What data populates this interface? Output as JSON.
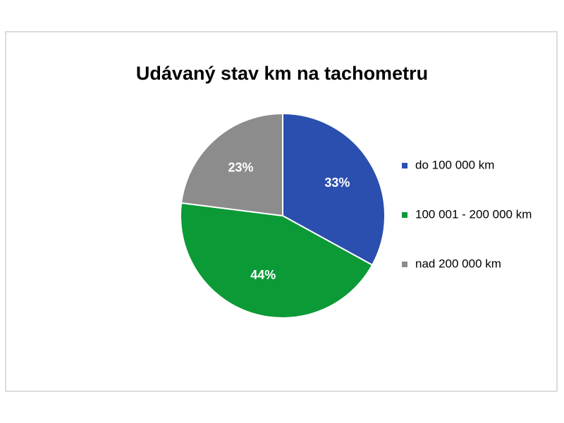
{
  "chart_data": {
    "type": "pie",
    "title": "Udávaný stav km na tachometru",
    "categories": [
      "do 100 000 km",
      "100 001 - 200 000 km",
      "nad 200 000 km"
    ],
    "values": [
      33,
      44,
      23
    ],
    "value_labels": [
      "33%",
      "44%",
      "23%"
    ],
    "colors": [
      "#2b4fae",
      "#0b9a36",
      "#8c8c8c"
    ],
    "legend": "right"
  }
}
